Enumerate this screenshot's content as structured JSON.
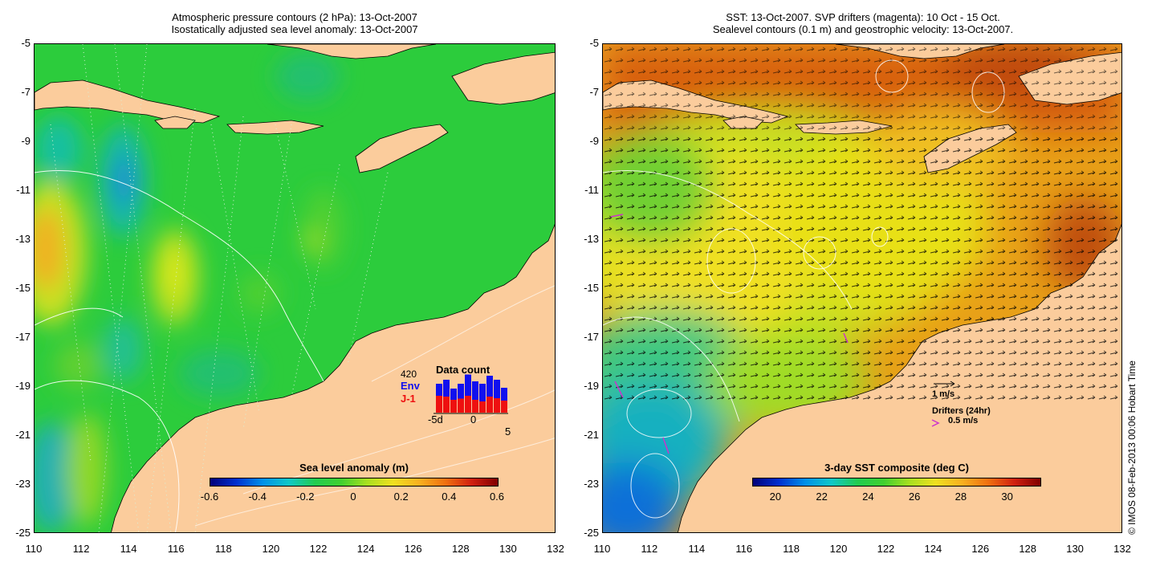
{
  "left_panel": {
    "title_line1": "Atmospheric pressure contours (2 hPa): 13-Oct-2007",
    "title_line2": "Isostatically adjusted sea level anomaly: 13-Oct-2007",
    "colorbar": {
      "title": "Sea level anomaly (m)",
      "ticks": [
        "-0.6",
        "-0.4",
        "-0.2",
        "0",
        "0.2",
        "0.4",
        "0.6"
      ]
    },
    "data_count": {
      "title": "Data count",
      "max_label": "420",
      "env_label": "Env",
      "j1_label": "J-1",
      "x_ticks": [
        "-5d",
        "0",
        "5"
      ],
      "env_color": "#1010ee",
      "j1_color": "#ee1010",
      "env_values": [
        0.72,
        0.82,
        0.6,
        0.72,
        0.95,
        0.78,
        0.72,
        0.92,
        0.82,
        0.62
      ],
      "j1_values": [
        0.42,
        0.4,
        0.32,
        0.35,
        0.42,
        0.32,
        0.28,
        0.4,
        0.36,
        0.3
      ]
    }
  },
  "right_panel": {
    "title_line1": "SST: 13-Oct-2007. SVP drifters (magenta): 10 Oct - 15 Oct.",
    "title_line2": "Sealevel contours (0.1 m) and geostrophic velocity: 13-Oct-2007.",
    "colorbar": {
      "title": "3-day SST composite (deg C)",
      "ticks": [
        "20",
        "22",
        "24",
        "26",
        "28",
        "30"
      ]
    },
    "legend": {
      "velocity_label": "1 m/s",
      "drifters_label": "Drifters (24hr)",
      "drifter_speed_label": "0.5 m/s",
      "drifter_color": "#cc33cc"
    }
  },
  "axes": {
    "y_ticks": [
      "-5",
      "-7",
      "-9",
      "-11",
      "-13",
      "-15",
      "-17",
      "-19",
      "-21",
      "-23",
      "-25"
    ],
    "x_ticks": [
      "110",
      "112",
      "114",
      "116",
      "118",
      "120",
      "122",
      "124",
      "126",
      "128",
      "130",
      "132"
    ]
  },
  "colors": {
    "land": "#fbcc9c",
    "ocean_green": "#30d040",
    "sst_warm": "#e88a10"
  },
  "copyright": "© IMOS 08-Feb-2013 00:06 Hobart Time"
}
